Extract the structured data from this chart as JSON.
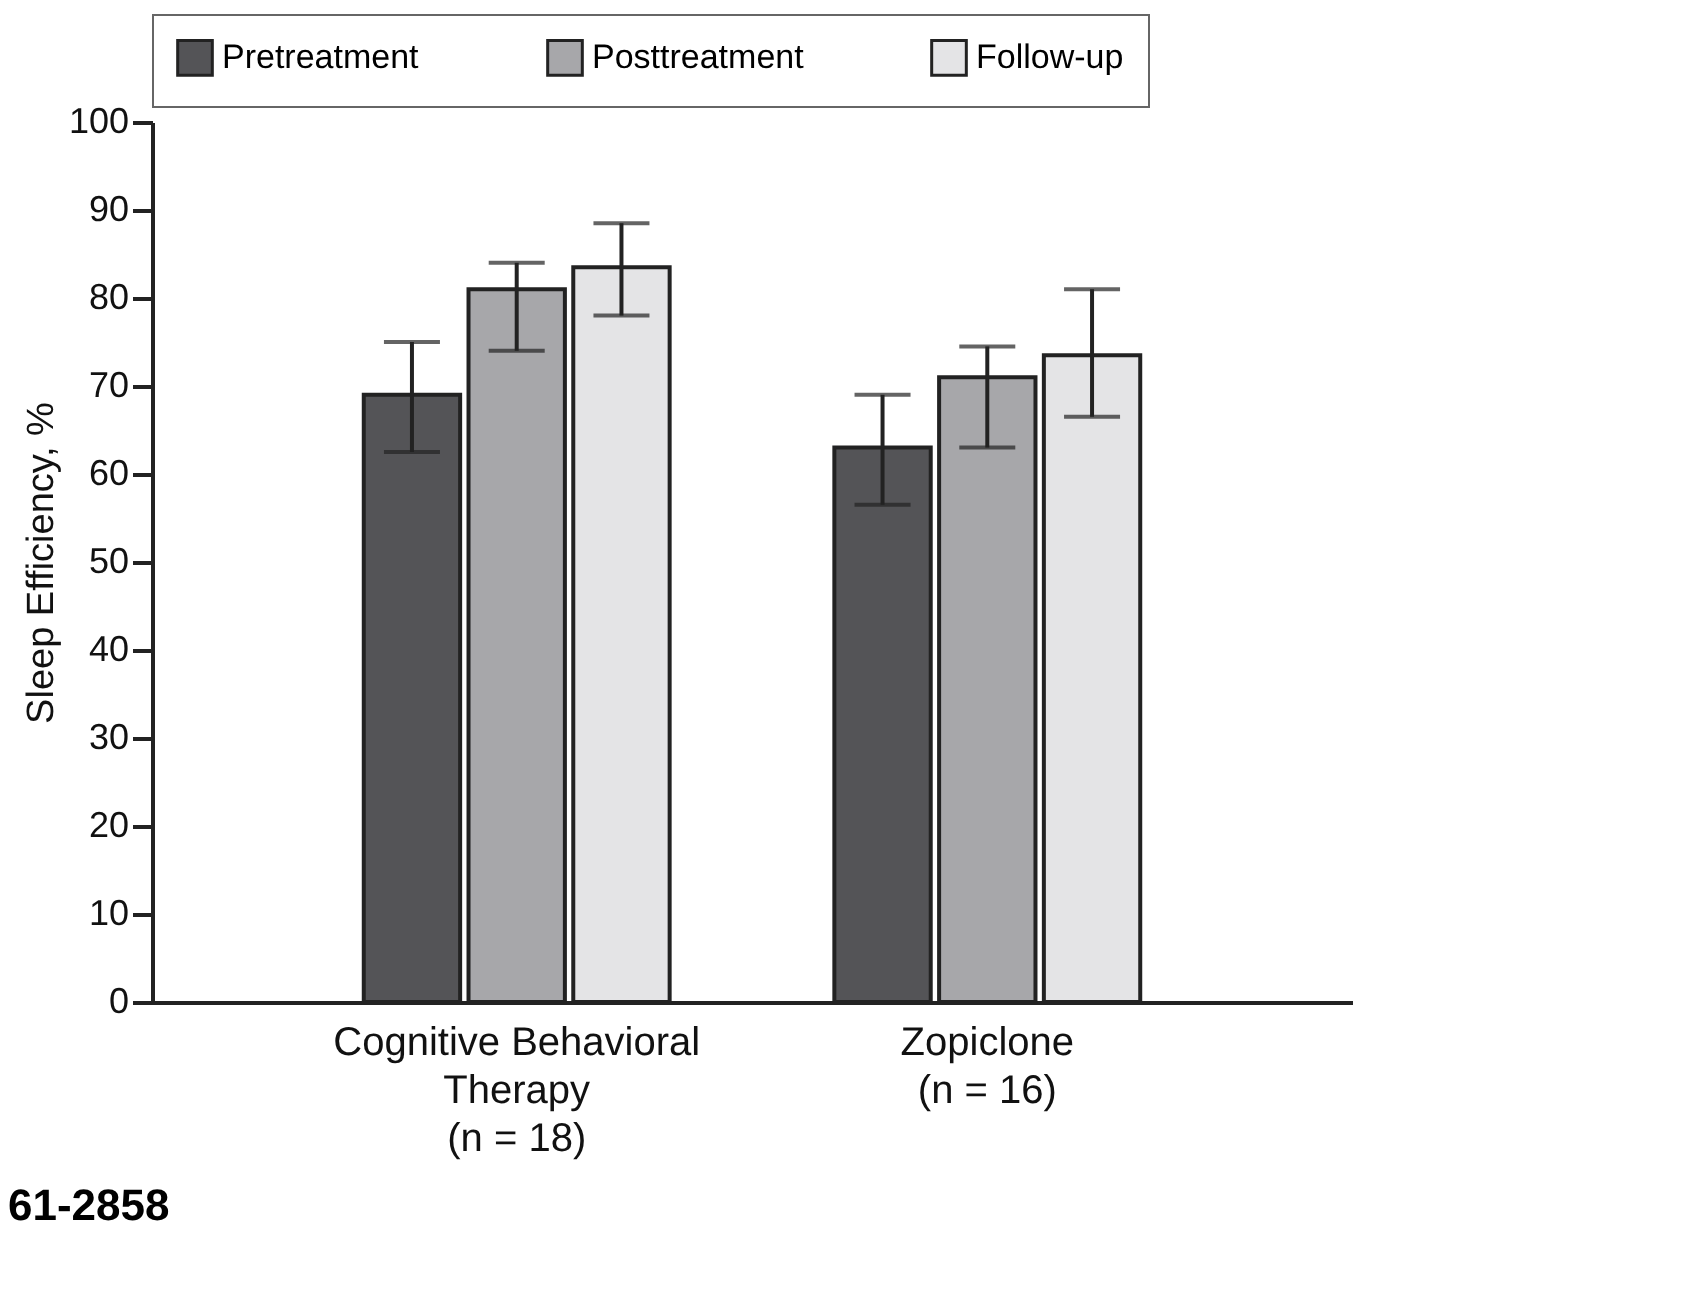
{
  "chart_data": {
    "type": "bar",
    "ylabel": "Sleep Efficiency, %",
    "categories": [
      "Cognitive Behavioral\nTherapy\n(n = 18)",
      "Zopiclone\n(n = 16)"
    ],
    "series": [
      {
        "name": "Pretreatment",
        "color": "#545457",
        "values": [
          69,
          63
        ],
        "errors": [
          [
            62.5,
            75
          ],
          [
            56.5,
            69
          ]
        ]
      },
      {
        "name": "Posttreatment",
        "color": "#a7a7aa",
        "values": [
          81,
          71
        ],
        "errors": [
          [
            74,
            84
          ],
          [
            63,
            74.5
          ]
        ]
      },
      {
        "name": "Follow-up",
        "color": "#e4e4e6",
        "values": [
          83.5,
          73.5
        ],
        "errors": [
          [
            78,
            88.5
          ],
          [
            66.5,
            81
          ]
        ]
      }
    ],
    "ylim": [
      0,
      100
    ],
    "yticks": [
      0,
      10,
      20,
      30,
      40,
      50,
      60,
      70,
      80,
      90,
      100
    ],
    "legend": "top",
    "grid": false,
    "annotations": [
      "61-2858"
    ]
  }
}
